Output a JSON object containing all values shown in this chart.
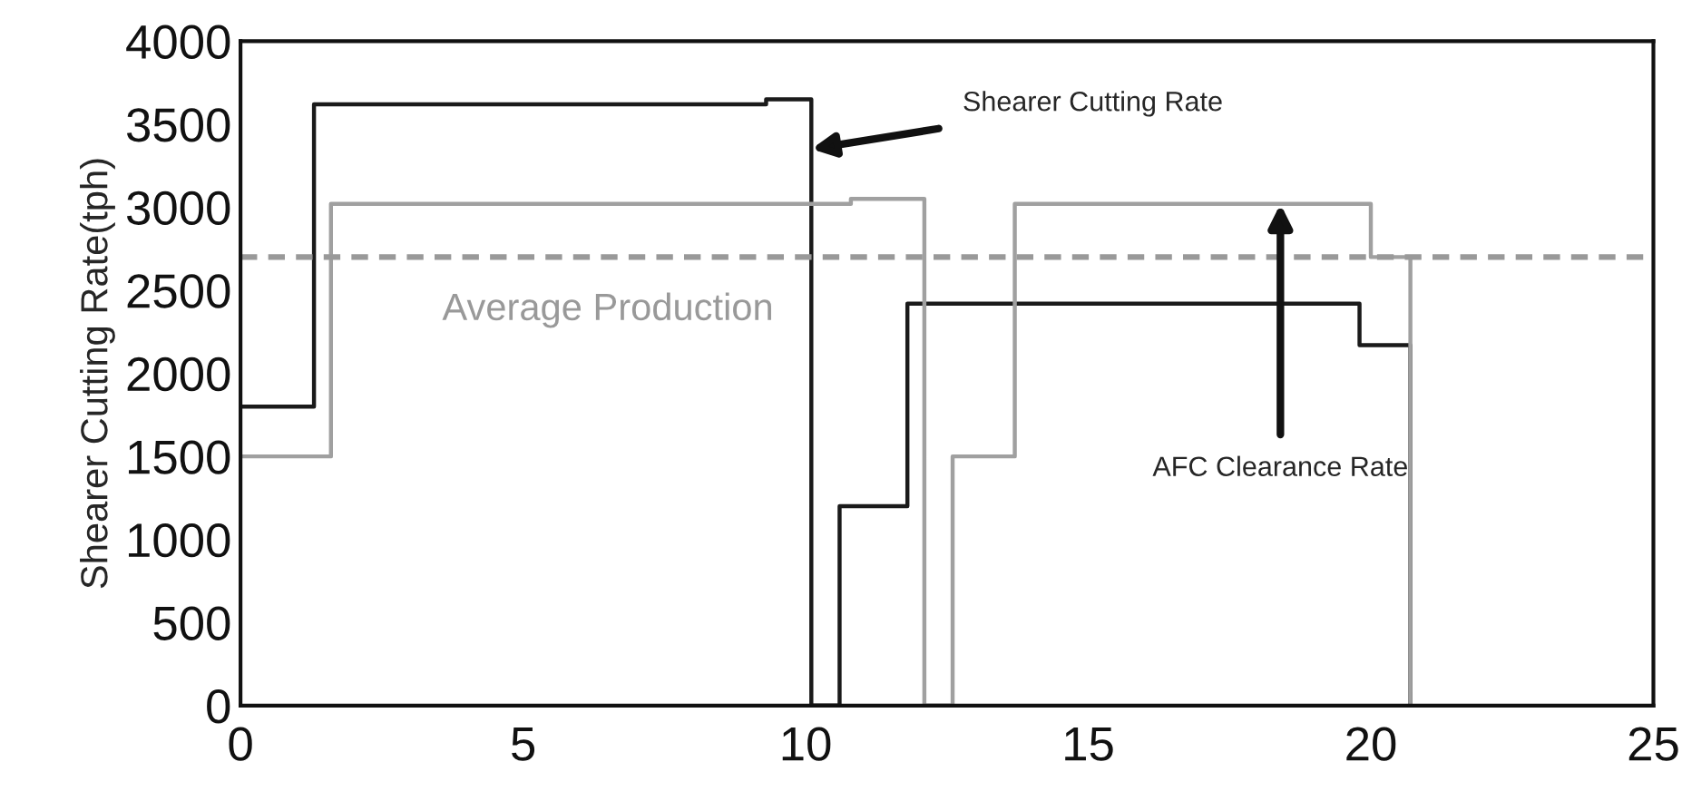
{
  "chart_data": {
    "type": "step",
    "ylabel": "Shearer Cutting Rate(tph)",
    "xlim": [
      0,
      25
    ],
    "xticks": [
      0,
      5,
      10,
      15,
      20,
      25
    ],
    "ylim": [
      0,
      4000
    ],
    "yticks": [
      0,
      500,
      1000,
      1500,
      2000,
      2500,
      3000,
      3500,
      4000
    ],
    "grid": false,
    "legend": false,
    "series": [
      {
        "color": "#1a1a1a",
        "x": [
          0,
          1.3,
          9.3,
          10.1,
          10.6,
          11.8,
          19.8,
          20.7
        ],
        "values": [
          1800,
          3620,
          3650,
          0,
          1200,
          2420,
          2170,
          0
        ]
      },
      {
        "color": "#a0a0a0",
        "x": [
          0,
          1.6,
          10.8,
          12.1,
          12.6,
          13.7,
          20.0,
          20.7
        ],
        "values": [
          1500,
          3020,
          3050,
          0,
          1500,
          3020,
          2700,
          0
        ]
      }
    ],
    "ref_lines": [
      {
        "axis": "y",
        "value": 2700,
        "label": "Average Production",
        "color": "#999999",
        "line_style": "dashed"
      }
    ],
    "annotations": [
      {
        "text": "Shearer Cutting Rate",
        "x": 10.1,
        "y": 3350
      },
      {
        "text": "AFC Clearance Rate",
        "x": 18.4,
        "y": 3020
      }
    ]
  }
}
